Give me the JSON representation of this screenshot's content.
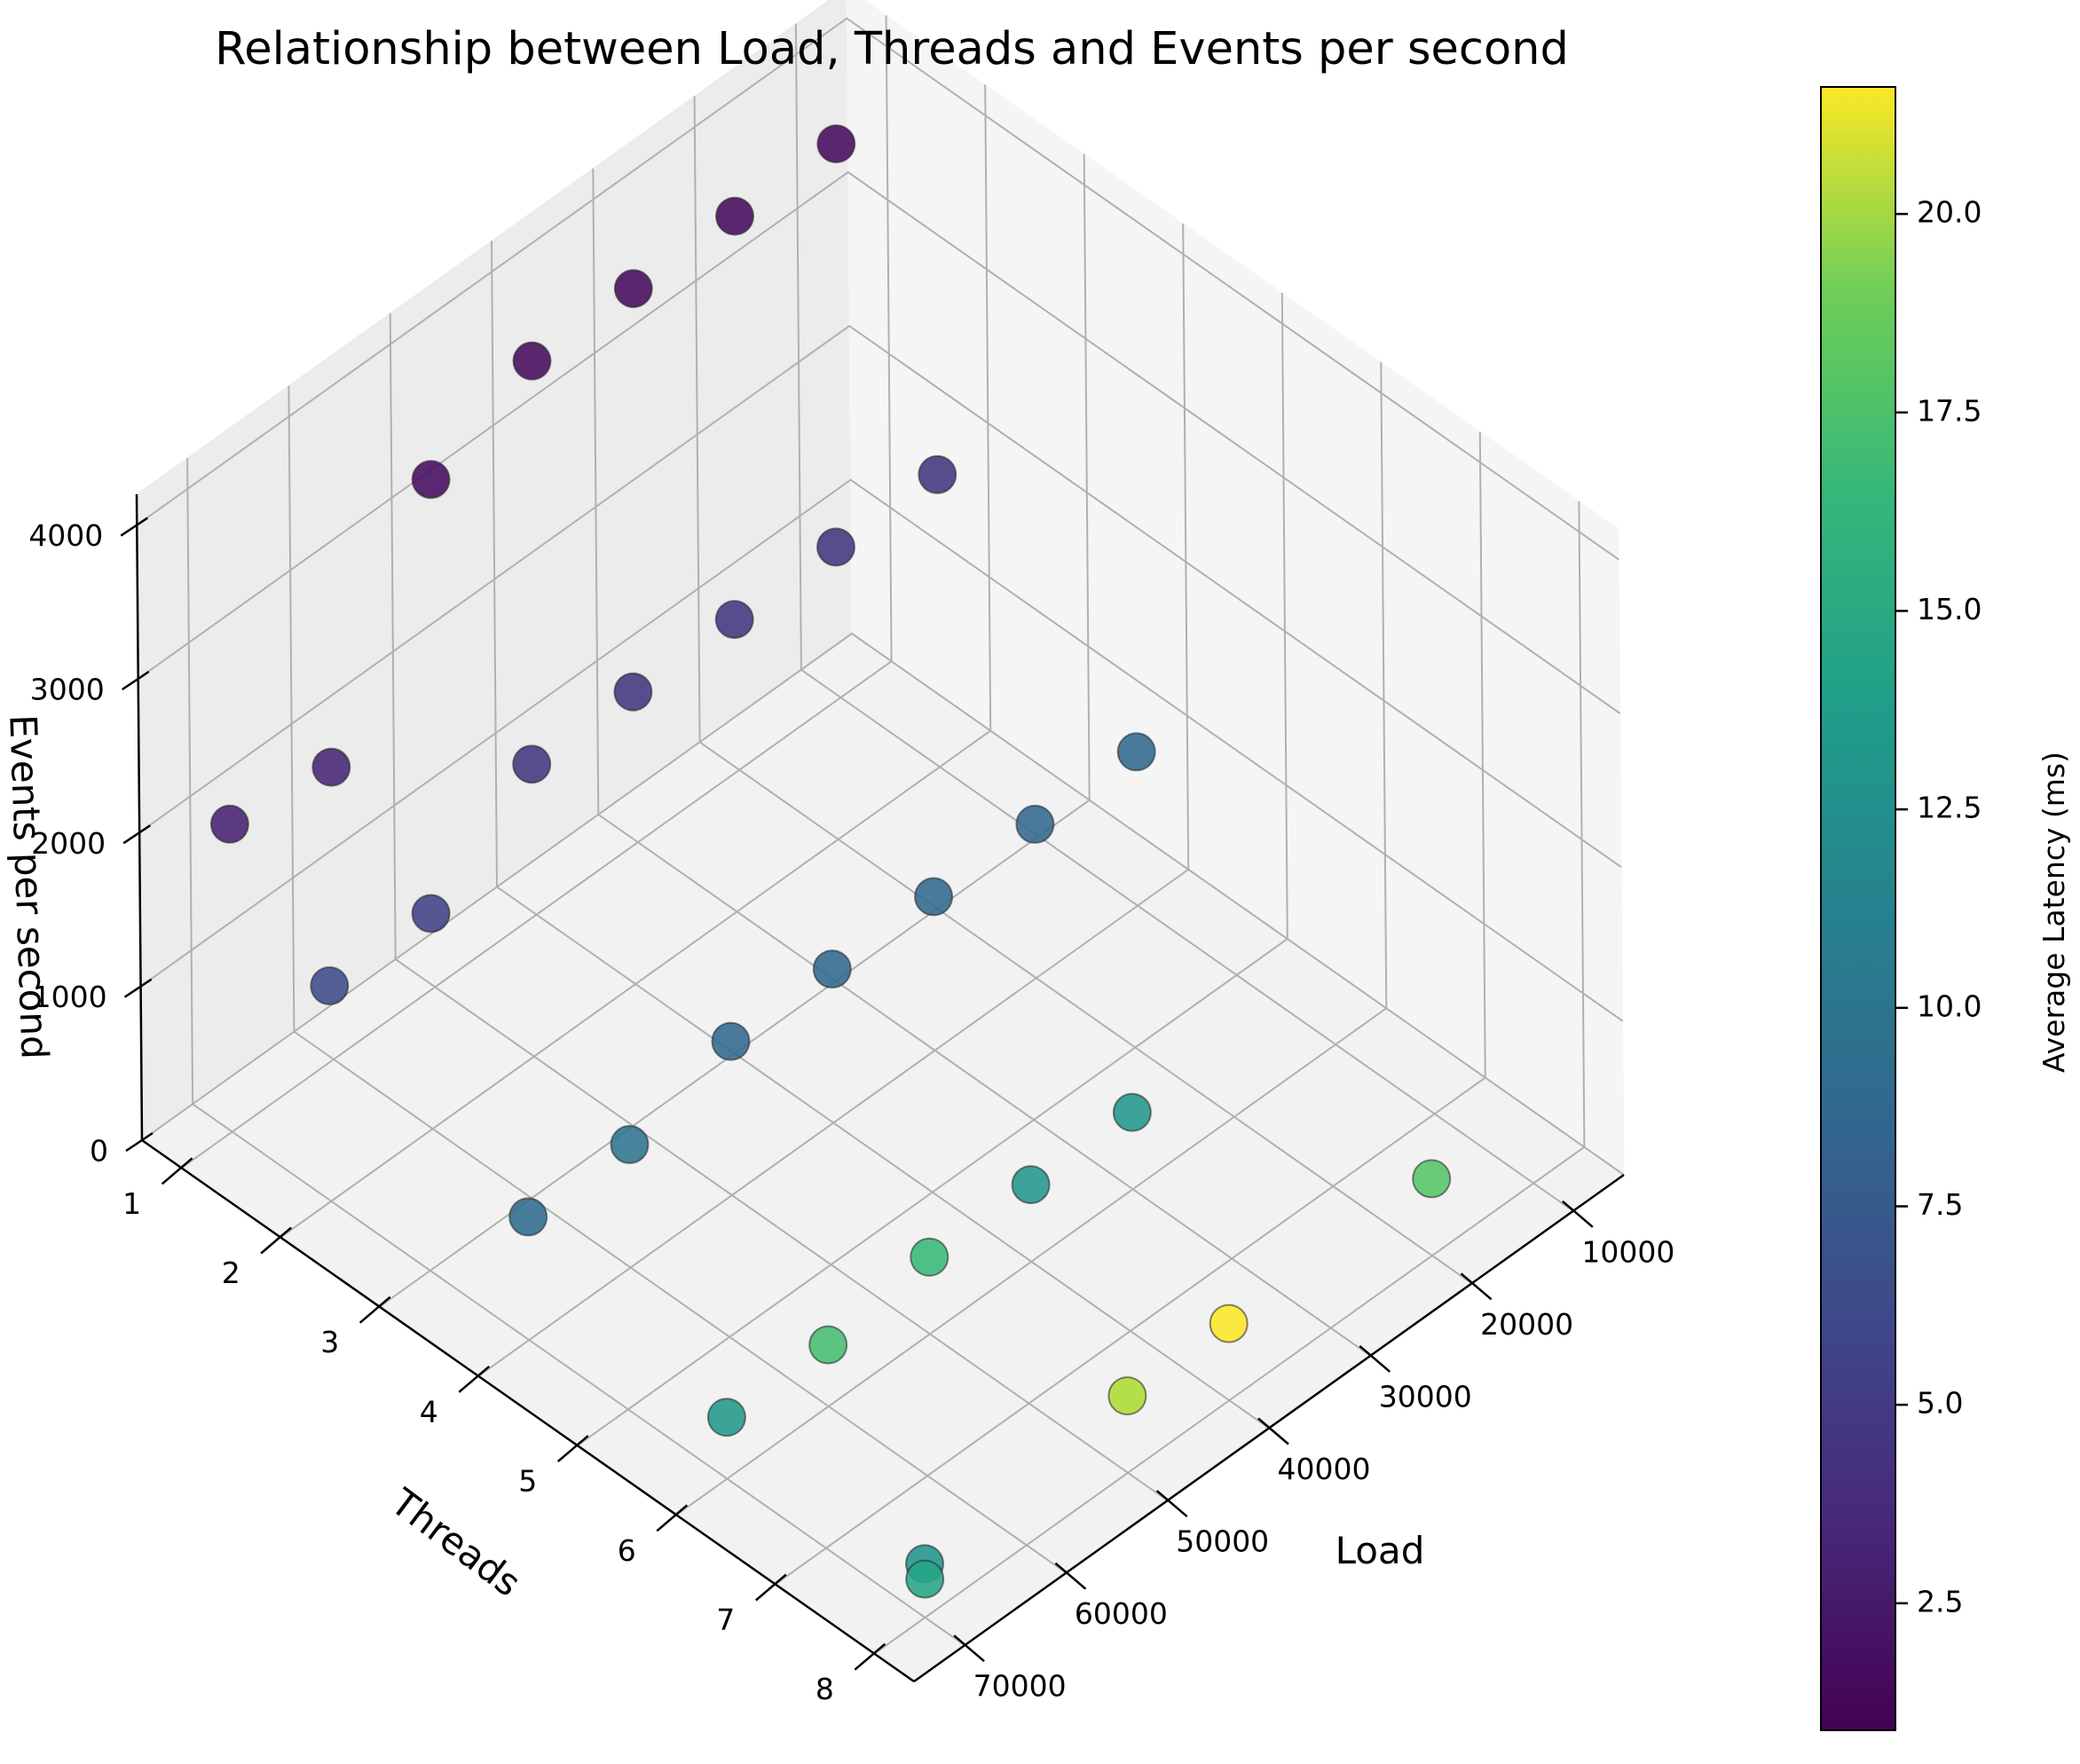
{
  "chart_data": {
    "type": "scatter",
    "projection": "3d",
    "title": "Relationship between Load, Threads and Events per second",
    "xlabel": "Load",
    "ylabel": "Threads",
    "zlabel": "Events per second",
    "xlim": [
      5000,
      75000
    ],
    "ylim": [
      0.6,
      8.4
    ],
    "zlim": [
      0,
      4200
    ],
    "x_ticks": [
      10000,
      20000,
      30000,
      40000,
      50000,
      60000,
      70000
    ],
    "y_ticks": [
      1,
      2,
      3,
      4,
      5,
      6,
      7,
      8
    ],
    "z_ticks": [
      0,
      1000,
      2000,
      3000,
      4000
    ],
    "grid": true,
    "colorbar": {
      "label": "Average Latency (ms)",
      "colormap": "viridis",
      "range": [
        0.9,
        21.6
      ],
      "ticks": [
        "2.5",
        "5.0",
        "7.5",
        "10.0",
        "12.5",
        "15.0",
        "17.5",
        "20.0"
      ]
    },
    "points": [
      {
        "load": 10000,
        "threads": 1,
        "events": 3600,
        "latency": 1.5
      },
      {
        "load": 10000,
        "threads": 2,
        "events": 1900,
        "latency": 4.2
      },
      {
        "load": 10000,
        "threads": 4,
        "events": 1000,
        "latency": 7.9
      },
      {
        "load": 20000,
        "threads": 1,
        "events": 3600,
        "latency": 1.5
      },
      {
        "load": 20000,
        "threads": 2,
        "events": 1900,
        "latency": 4.2
      },
      {
        "load": 20000,
        "threads": 4,
        "events": 1000,
        "latency": 7.9
      },
      {
        "load": 20000,
        "threads": 8,
        "events": 500,
        "latency": 16.0
      },
      {
        "load": 30000,
        "threads": 1,
        "events": 3600,
        "latency": 1.5
      },
      {
        "load": 30000,
        "threads": 2,
        "events": 1900,
        "latency": 4.2
      },
      {
        "load": 30000,
        "threads": 4,
        "events": 1000,
        "latency": 7.9
      },
      {
        "load": 30000,
        "threads": 6,
        "events": 500,
        "latency": 11.8
      },
      {
        "load": 40000,
        "threads": 1,
        "events": 3600,
        "latency": 1.5
      },
      {
        "load": 40000,
        "threads": 2,
        "events": 1900,
        "latency": 4.2
      },
      {
        "load": 40000,
        "threads": 4,
        "events": 1000,
        "latency": 7.9
      },
      {
        "load": 40000,
        "threads": 6,
        "events": 500,
        "latency": 11.8
      },
      {
        "load": 40000,
        "threads": 8,
        "events": 500,
        "latency": 21.5
      },
      {
        "load": 50000,
        "threads": 1,
        "events": 3300,
        "latency": 1.6
      },
      {
        "load": 50000,
        "threads": 2,
        "events": 1900,
        "latency": 4.2
      },
      {
        "load": 50000,
        "threads": 4,
        "events": 1000,
        "latency": 7.9
      },
      {
        "load": 50000,
        "threads": 6,
        "events": 500,
        "latency": 14.8
      },
      {
        "load": 50000,
        "threads": 8,
        "events": 500,
        "latency": 19.0
      },
      {
        "load": 60000,
        "threads": 1,
        "events": 1900,
        "latency": 3.0
      },
      {
        "load": 60000,
        "threads": 2,
        "events": 1400,
        "latency": 5.0
      },
      {
        "load": 60000,
        "threads": 4,
        "events": 800,
        "latency": 8.9
      },
      {
        "load": 60000,
        "threads": 6,
        "events": 400,
        "latency": 15.3
      },
      {
        "load": 70000,
        "threads": 1,
        "events": 2000,
        "latency": 2.8
      },
      {
        "load": 70000,
        "threads": 2,
        "events": 1400,
        "latency": 5.6
      },
      {
        "load": 70000,
        "threads": 4,
        "events": 800,
        "latency": 8.1
      },
      {
        "load": 70000,
        "threads": 6,
        "events": 400,
        "latency": 11.9
      },
      {
        "load": 70000,
        "threads": 8,
        "events": 350,
        "latency": 11.5
      },
      {
        "load": 70000,
        "threads": 8,
        "events": 250,
        "latency": 13.0
      }
    ]
  }
}
